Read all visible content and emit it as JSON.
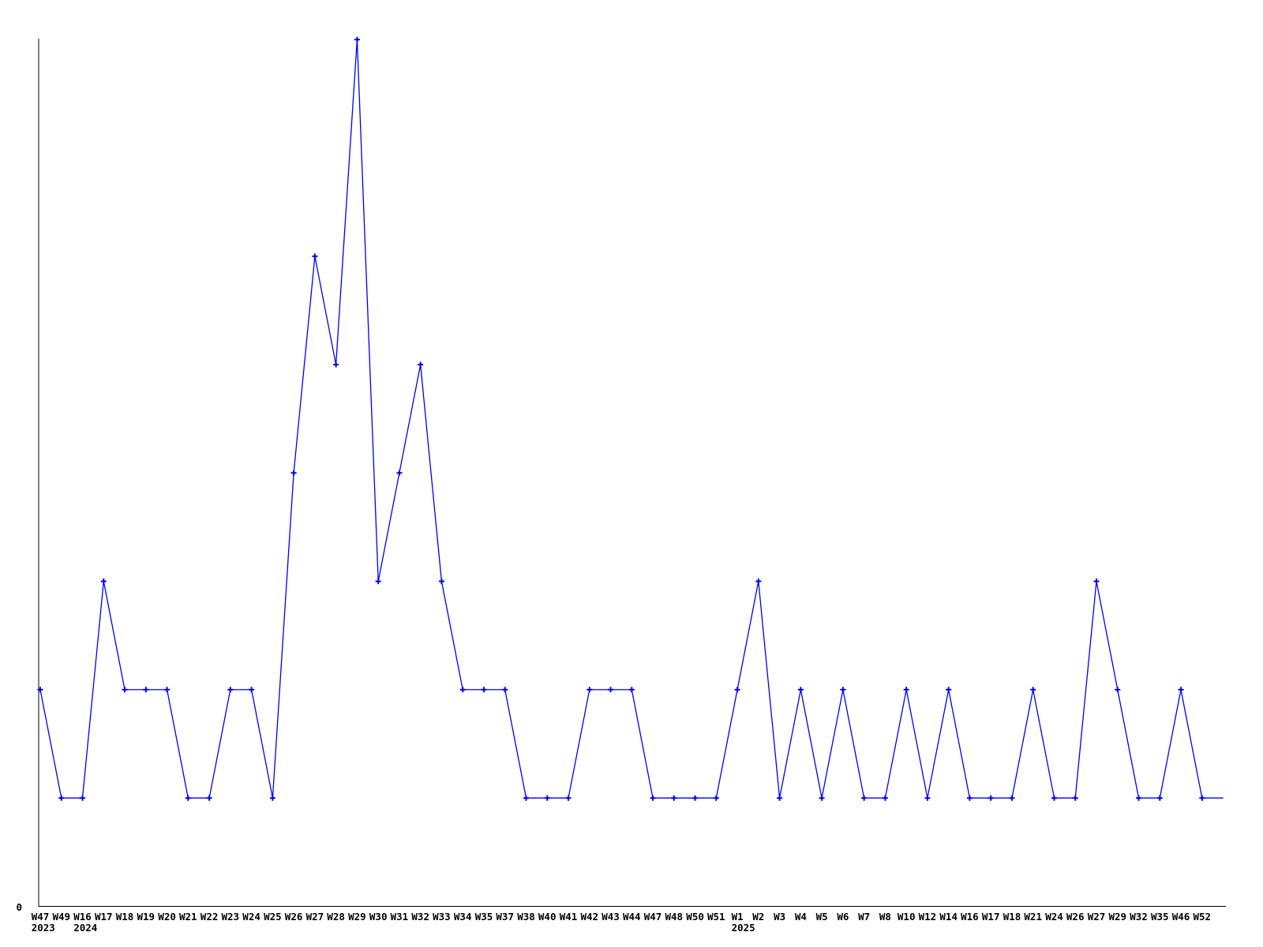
{
  "page": {
    "background": "#ffffff"
  },
  "chart_data": {
    "type": "line",
    "title": "",
    "xlabel": "",
    "ylabel": "",
    "categories": [
      "W47",
      "W49",
      "W16",
      "W17",
      "W18",
      "W19",
      "W20",
      "W21",
      "W22",
      "W23",
      "W24",
      "W25",
      "W26",
      "W27",
      "W28",
      "W29",
      "W30",
      "W31",
      "W32",
      "W33",
      "W34",
      "W35",
      "W37",
      "W38",
      "W40",
      "W41",
      "W42",
      "W43",
      "W44",
      "W47",
      "W48",
      "W50",
      "W51",
      "W1",
      "W2",
      "W3",
      "W4",
      "W5",
      "W6",
      "W7",
      "W8",
      "W10",
      "W12",
      "W14",
      "W16",
      "W17",
      "W18",
      "W21",
      "W24",
      "W26",
      "W27",
      "W29",
      "W32",
      "W35",
      "W46",
      "W52"
    ],
    "values": [
      2,
      1,
      1,
      3,
      2,
      2,
      2,
      1,
      1,
      2,
      2,
      1,
      4,
      6,
      5,
      8,
      3,
      4,
      5,
      3,
      2,
      2,
      2,
      1,
      1,
      1,
      2,
      2,
      2,
      1,
      1,
      1,
      1,
      2,
      3,
      1,
      2,
      1,
      2,
      1,
      1,
      2,
      1,
      2,
      1,
      1,
      1,
      2,
      1,
      1,
      3,
      2,
      1,
      1,
      2,
      1
    ],
    "trailing_segment": {
      "value": 1,
      "note": "flat unmarked line continues one slot past last point"
    },
    "year_markers": [
      {
        "index": 0,
        "label": "2023"
      },
      {
        "index": 2,
        "label": "2024"
      },
      {
        "index": 33,
        "label": "2025"
      }
    ],
    "y_tick_labels": [
      "0"
    ],
    "ylim": [
      0,
      8
    ],
    "grid": false,
    "legend": "none",
    "marker": "plus",
    "colors": {
      "series": "#0000f0",
      "axis": "#000000",
      "text": "#000000",
      "background": "#ffffff"
    }
  }
}
